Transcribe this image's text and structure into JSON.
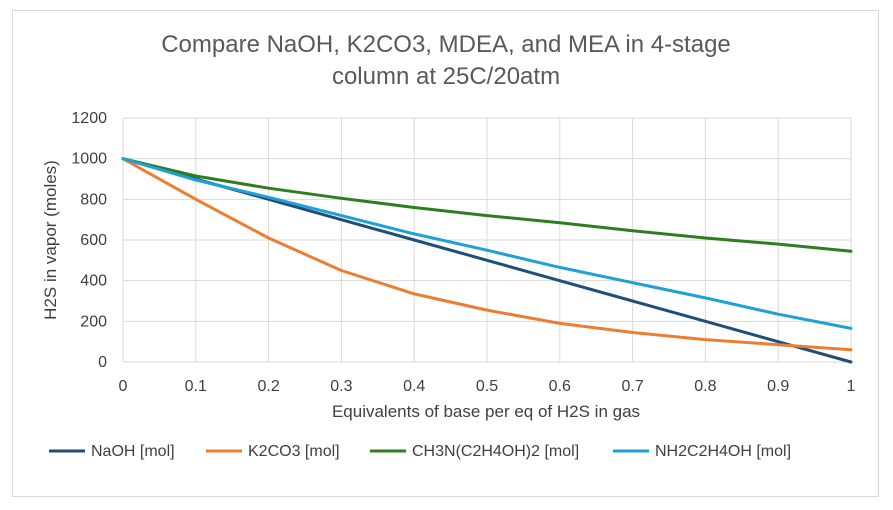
{
  "chart_data": {
    "type": "line",
    "title_lines": [
      "Compare NaOH, K2CO3, MDEA, and MEA in 4-stage",
      "column at 25C/20atm"
    ],
    "xlabel": "Equivalents of base per eq of H2S in gas",
    "ylabel": "H2S in vapor (moles)",
    "x": [
      0,
      0.1,
      0.2,
      0.3,
      0.4,
      0.5,
      0.6,
      0.7,
      0.8,
      0.9,
      1
    ],
    "x_tick_labels": [
      "0",
      "0.1",
      "0.2",
      "0.3",
      "0.4",
      "0.5",
      "0.6",
      "0.7",
      "0.8",
      "0.9",
      "1"
    ],
    "y_tick_labels": [
      "0",
      "200",
      "400",
      "600",
      "800",
      "1000",
      "1200"
    ],
    "xlim": [
      0,
      1
    ],
    "ylim": [
      0,
      1200
    ],
    "grid": true,
    "legend_position": "bottom",
    "series": [
      {
        "name": "NaOH [mol]",
        "color": "#1f4e79",
        "values": [
          1000,
          900,
          800,
          700,
          600,
          500,
          400,
          300,
          200,
          100,
          0
        ]
      },
      {
        "name": "K2CO3 [mol]",
        "color": "#ed7d31",
        "values": [
          1000,
          800,
          610,
          450,
          335,
          255,
          190,
          145,
          110,
          85,
          60
        ]
      },
      {
        "name": "CH3N(C2H4OH)2 [mol]",
        "color": "#2e7d1e",
        "values": [
          1000,
          915,
          855,
          805,
          760,
          720,
          685,
          645,
          610,
          580,
          545
        ]
      },
      {
        "name": "NH2C2H4OH [mol]",
        "color": "#1fa0d8",
        "values": [
          1000,
          895,
          810,
          720,
          630,
          550,
          465,
          390,
          315,
          235,
          165
        ]
      }
    ]
  }
}
